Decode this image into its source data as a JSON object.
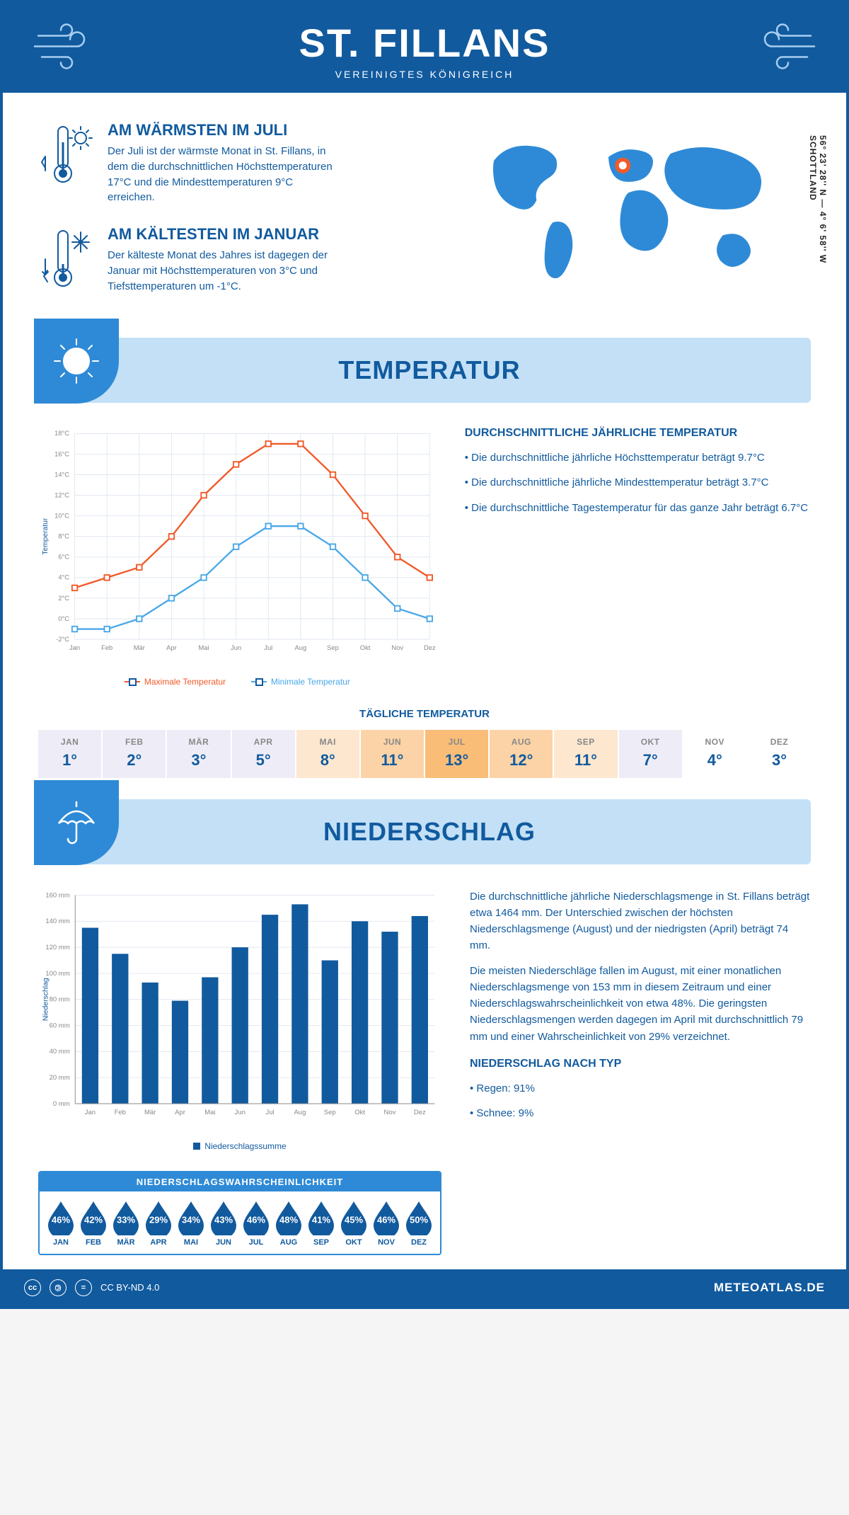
{
  "header": {
    "title": "ST. FILLANS",
    "subtitle": "VEREINIGTES KÖNIGREICH"
  },
  "coords": "56° 23' 28'' N — 4° 6' 58'' W   SCHOTTLAND",
  "warmest": {
    "heading": "AM WÄRMSTEN IM JULI",
    "body": "Der Juli ist der wärmste Monat in St. Fillans, in dem die durchschnittlichen Höchsttemperaturen 17°C und die Mindesttemperaturen 9°C erreichen."
  },
  "coldest": {
    "heading": "AM KÄLTESTEN IM JANUAR",
    "body": "Der kälteste Monat des Jahres ist dagegen der Januar mit Höchsttemperaturen von 3°C und Tiefsttemperaturen um -1°C."
  },
  "months": [
    "Jan",
    "Feb",
    "Mär",
    "Apr",
    "Mai",
    "Jun",
    "Jul",
    "Aug",
    "Sep",
    "Okt",
    "Nov",
    "Dez"
  ],
  "months_uc": [
    "JAN",
    "FEB",
    "MÄR",
    "APR",
    "MAI",
    "JUN",
    "JUL",
    "AUG",
    "SEP",
    "OKT",
    "NOV",
    "DEZ"
  ],
  "colors": {
    "primary": "#115a9e",
    "accent": "#2e8ad6",
    "light": "#c3e0f7",
    "max_line": "#f15a29",
    "min_line": "#4aa8e8",
    "grid": "#dfe7f1",
    "bar": "#115a9e"
  },
  "temp_section": {
    "title": "TEMPERATUR"
  },
  "temp_chart": {
    "ylabel": "Temperatur",
    "y_min": -2,
    "y_max": 18,
    "y_step": 2,
    "max_series": [
      3,
      4,
      5,
      8,
      12,
      15,
      17,
      17,
      14,
      10,
      6,
      4
    ],
    "min_series": [
      -1,
      -1,
      0,
      2,
      4,
      7,
      9,
      9,
      7,
      4,
      1,
      0
    ],
    "legend_max": "Maximale Temperatur",
    "legend_min": "Minimale Temperatur"
  },
  "temp_text": {
    "heading": "DURCHSCHNITTLICHE JÄHRLICHE TEMPERATUR",
    "b1": "• Die durchschnittliche jährliche Höchsttemperatur beträgt 9.7°C",
    "b2": "• Die durchschnittliche jährliche Mindesttemperatur beträgt 3.7°C",
    "b3": "• Die durchschnittliche Tagestemperatur für das ganze Jahr beträgt 6.7°C"
  },
  "daily_temp": {
    "title": "TÄGLICHE TEMPERATUR",
    "values": [
      "1°",
      "2°",
      "3°",
      "5°",
      "8°",
      "11°",
      "13°",
      "12°",
      "11°",
      "7°",
      "4°",
      "3°"
    ],
    "bg": [
      "#eeedf7",
      "#eeedf7",
      "#eeedf7",
      "#eeedf7",
      "#fde7cf",
      "#fbd3a6",
      "#f9bd78",
      "#fbd3a6",
      "#fde7cf",
      "#eeedf7",
      "#ffffff",
      "#ffffff"
    ]
  },
  "precip_section": {
    "title": "NIEDERSCHLAG"
  },
  "precip_chart": {
    "ylabel": "Niederschlag",
    "y_min": 0,
    "y_max": 160,
    "y_step": 20,
    "values": [
      135,
      115,
      93,
      79,
      97,
      120,
      145,
      153,
      110,
      140,
      132,
      144
    ],
    "legend": "Niederschlagssumme"
  },
  "precip_text": {
    "p1": "Die durchschnittliche jährliche Niederschlagsmenge in St. Fillans beträgt etwa 1464 mm. Der Unterschied zwischen der höchsten Niederschlagsmenge (August) und der niedrigsten (April) beträgt 74 mm.",
    "p2": "Die meisten Niederschläge fallen im August, mit einer monatlichen Niederschlagsmenge von 153 mm in diesem Zeitraum und einer Niederschlagswahrscheinlichkeit von etwa 48%. Die geringsten Niederschlagsmengen werden dagegen im April mit durchschnittlich 79 mm und einer Wahrscheinlichkeit von 29% verzeichnet.",
    "type_heading": "NIEDERSCHLAG NACH TYP",
    "type1": "• Regen: 91%",
    "type2": "• Schnee: 9%"
  },
  "precip_prob": {
    "title": "NIEDERSCHLAGSWAHRSCHEINLICHKEIT",
    "values": [
      "46%",
      "42%",
      "33%",
      "29%",
      "34%",
      "43%",
      "46%",
      "48%",
      "41%",
      "45%",
      "46%",
      "50%"
    ]
  },
  "footer": {
    "license": "CC BY-ND 4.0",
    "brand": "METEOATLAS.DE"
  }
}
